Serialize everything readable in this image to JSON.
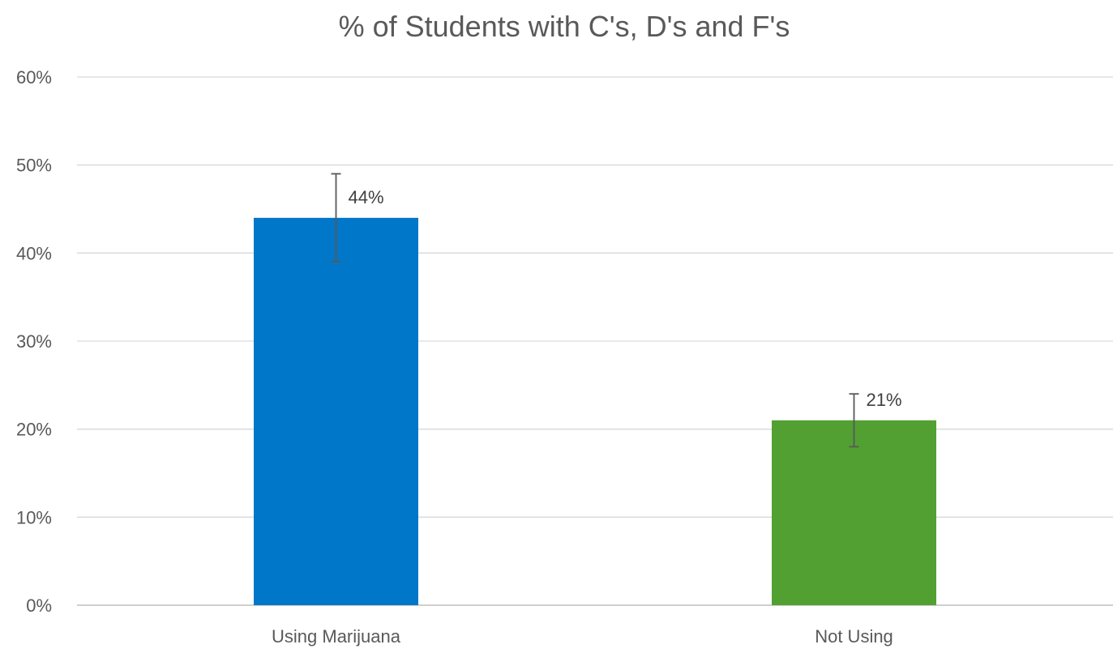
{
  "chart_data": {
    "type": "bar",
    "title": "% of Students with C's, D's and F's",
    "categories": [
      "Using Marijuana",
      "Not Using"
    ],
    "values": [
      44,
      21
    ],
    "data_labels": [
      "44%",
      "21%"
    ],
    "error_bars": [
      {
        "low": 39,
        "high": 49
      },
      {
        "low": 18,
        "high": 24
      }
    ],
    "colors": [
      "#0077c8",
      "#52a031"
    ],
    "ylim": [
      0,
      60
    ],
    "yticks": [
      0,
      10,
      20,
      30,
      40,
      50,
      60
    ],
    "ytick_labels": [
      "0%",
      "10%",
      "20%",
      "30%",
      "40%",
      "50%",
      "60%"
    ],
    "xlabel": "",
    "ylabel": "",
    "grid": true,
    "legend": "none"
  }
}
